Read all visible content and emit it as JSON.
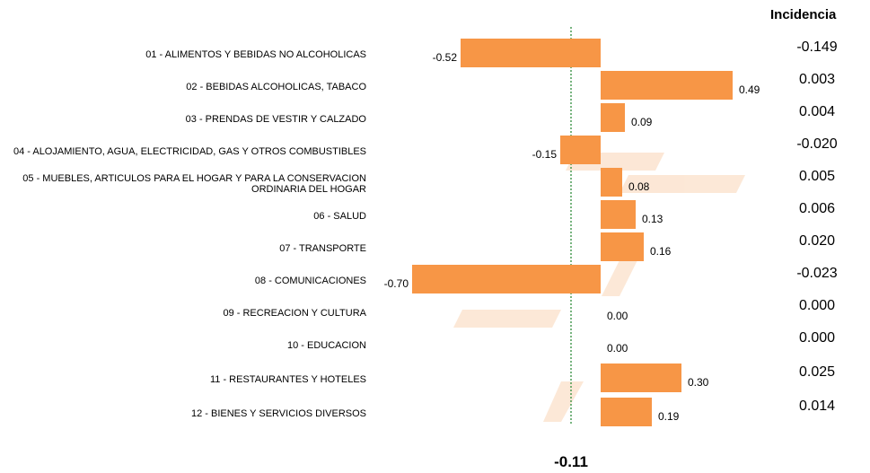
{
  "chart_data": {
    "type": "bar",
    "orientation": "horizontal",
    "categories": [
      "01 - ALIMENTOS Y BEBIDAS NO ALCOHOLICAS",
      "02 - BEBIDAS ALCOHOLICAS, TABACO",
      "03 - PRENDAS DE VESTIR Y CALZADO",
      "04 - ALOJAMIENTO, AGUA, ELECTRICIDAD, GAS Y OTROS COMBUSTIBLES",
      "05 - MUEBLES, ARTICULOS PARA EL HOGAR Y PARA LA CONSERVACION ORDINARIA DEL HOGAR",
      "06 - SALUD",
      "07 - TRANSPORTE",
      "08 - COMUNICACIONES",
      "09 - RECREACION Y CULTURA",
      "10 - EDUCACION",
      "11 - RESTAURANTES Y HOTELES",
      "12 - BIENES Y SERVICIOS DIVERSOS"
    ],
    "values": [
      -0.52,
      0.49,
      0.09,
      -0.15,
      0.08,
      0.13,
      0.16,
      -0.7,
      0.0,
      0.0,
      0.3,
      0.19
    ],
    "value_labels": [
      "-0.52",
      "0.49",
      "0.09",
      "-0.15",
      "0.08",
      "0.13",
      "0.16",
      "-0.70",
      "0.00",
      "0.00",
      "0.30",
      "0.19"
    ],
    "color": "#f79646",
    "reference_line": -0.11,
    "reference_color": "#2e8b3a"
  },
  "incidence": {
    "title": "Incidencia",
    "values": [
      "-0.149",
      "0.003",
      "0.004",
      "-0.020",
      "0.005",
      "0.006",
      "0.020",
      "-0.023",
      "0.000",
      "0.000",
      "0.025",
      "0.014"
    ]
  }
}
